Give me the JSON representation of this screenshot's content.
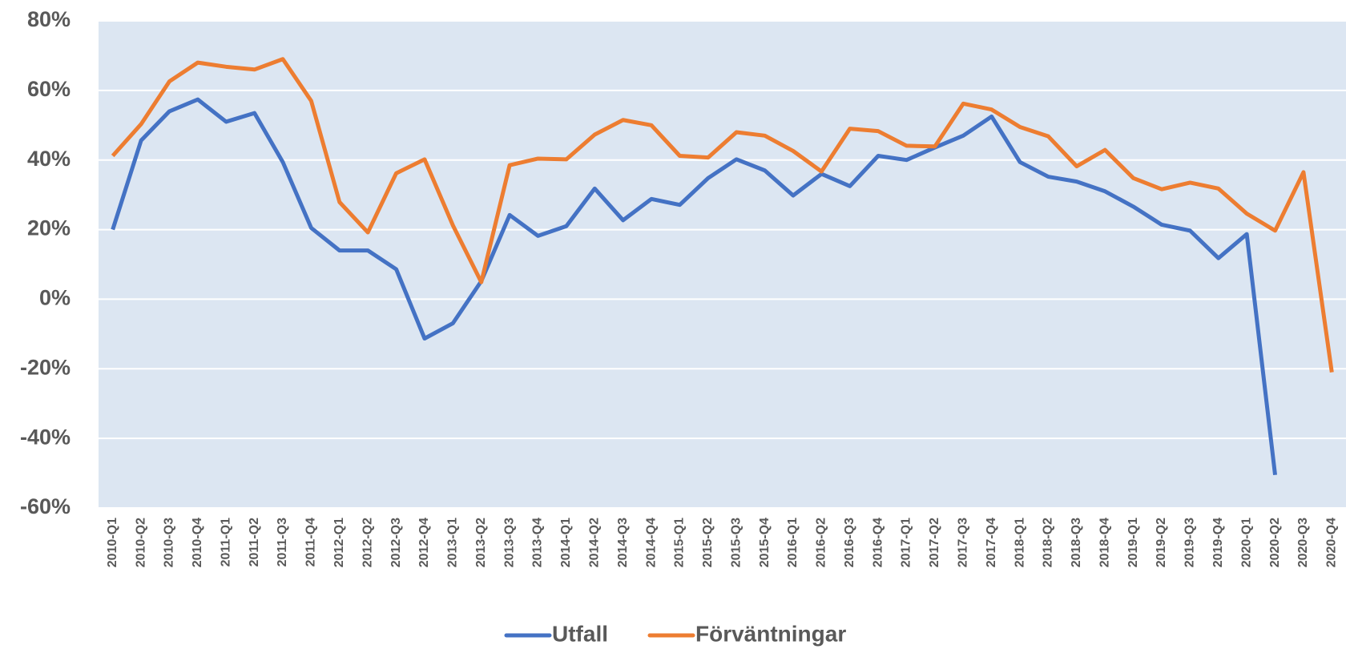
{
  "chart_data": {
    "type": "line",
    "categories": [
      "2010-Q1",
      "2010-Q2",
      "2010-Q3",
      "2010-Q4",
      "2011-Q1",
      "2011-Q2",
      "2011-Q3",
      "2011-Q4",
      "2012-Q1",
      "2012-Q2",
      "2012-Q3",
      "2012-Q4",
      "2013-Q1",
      "2013-Q2",
      "2013-Q3",
      "2013-Q4",
      "2014-Q1",
      "2014-Q2",
      "2014-Q3",
      "2014-Q4",
      "2015-Q1",
      "2015-Q2",
      "2015-Q3",
      "2015-Q4",
      "2016-Q1",
      "2016-Q2",
      "2016-Q3",
      "2016-Q4",
      "2017-Q1",
      "2017-Q2",
      "2017-Q3",
      "2017-Q4",
      "2018-Q1",
      "2018-Q2",
      "2018-Q3",
      "2018-Q4",
      "2019-Q1",
      "2019-Q2",
      "2019-Q3",
      "2019-Q4",
      "2020-Q1",
      "2020-Q2",
      "2020-Q3",
      "2020-Q4"
    ],
    "series": [
      {
        "name": "Utfall",
        "color": "#4472c4",
        "values": [
          20,
          45.6,
          54,
          57.4,
          51,
          53.5,
          39.4,
          20.5,
          14,
          14,
          8.6,
          -11.3,
          -6.9,
          5.2,
          24.2,
          18.2,
          21,
          31.8,
          22.7,
          28.8,
          27.1,
          34.8,
          40.2,
          37,
          29.8,
          36,
          32.5,
          41.2,
          40,
          43.6,
          47,
          52.5,
          39.4,
          35.2,
          33.8,
          31,
          26.6,
          21.4,
          19.7,
          11.8,
          18.7,
          -50.5,
          null,
          null
        ]
      },
      {
        "name": "Förväntningar",
        "color": "#ed7d31",
        "values": [
          41.2,
          50.3,
          62.6,
          68,
          66.8,
          66,
          69,
          57,
          27.9,
          19.2,
          36.2,
          40.2,
          21.2,
          4.9,
          38.5,
          40.4,
          40.2,
          47.3,
          51.5,
          50,
          41.2,
          40.7,
          48,
          47,
          42.6,
          36.7,
          49,
          48.3,
          44.1,
          43.9,
          56.2,
          54.5,
          49.5,
          46.8,
          38.2,
          42.9,
          34.8,
          31.6,
          33.5,
          31.8,
          24.6,
          19.7,
          36.5,
          -21
        ]
      }
    ],
    "ylim": [
      -60,
      80
    ],
    "yticks": [
      {
        "value": -60,
        "label": "-60%"
      },
      {
        "value": -40,
        "label": "-40%"
      },
      {
        "value": -20,
        "label": "-20%"
      },
      {
        "value": 0,
        "label": "0%"
      },
      {
        "value": 20,
        "label": "20%"
      },
      {
        "value": 40,
        "label": "40%"
      },
      {
        "value": 60,
        "label": "60%"
      },
      {
        "value": 80,
        "label": "80%"
      }
    ],
    "grid": true,
    "legend": "bottom"
  }
}
